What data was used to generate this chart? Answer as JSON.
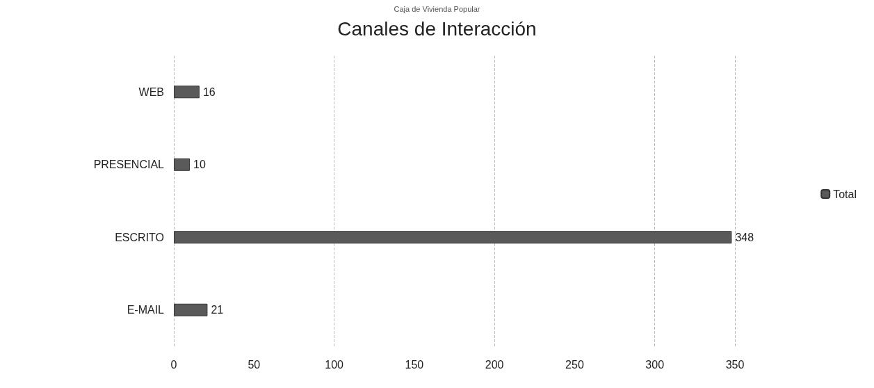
{
  "chart_data": {
    "type": "bar",
    "orientation": "horizontal",
    "title": "Canales de Interacción",
    "annotations": [
      "Caja de Vivienda Popular"
    ],
    "categories": [
      "WEB",
      "PRESENCIAL",
      "ESCRITO",
      "E-MAIL"
    ],
    "series": [
      {
        "name": "Total",
        "color": "#5a5a5a",
        "values": [
          16,
          10,
          348,
          21
        ]
      }
    ],
    "xlim": [
      0,
      350
    ],
    "xticks": [
      0,
      50,
      100,
      150,
      200,
      250,
      300,
      350
    ],
    "grid": "x",
    "legend": "right",
    "data_labels": true
  }
}
